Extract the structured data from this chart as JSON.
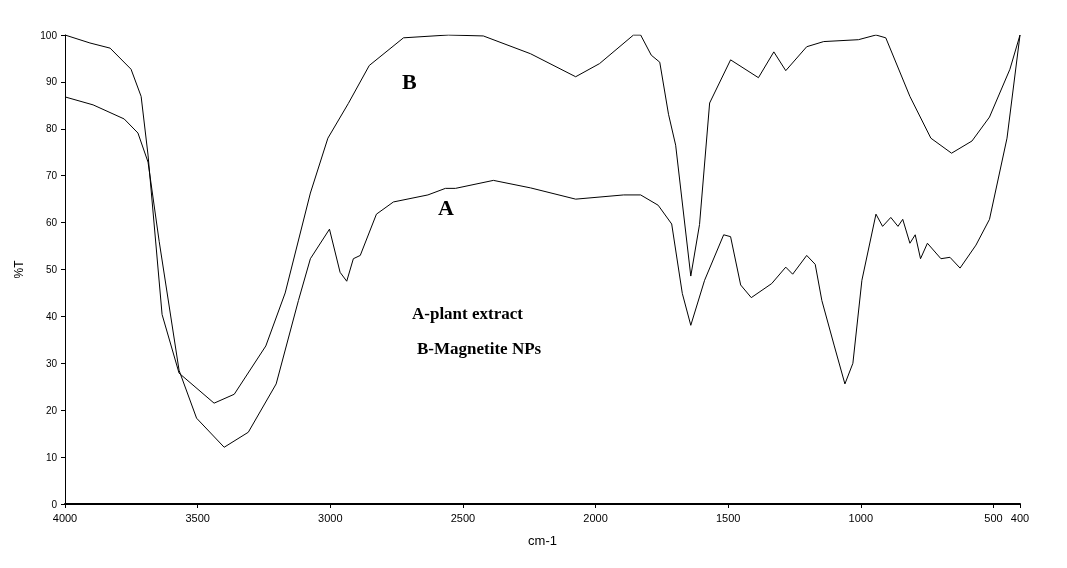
{
  "chart_data": {
    "type": "line",
    "xlabel": "cm-1",
    "ylabel": "%T",
    "xlim": [
      4000,
      400
    ],
    "ylim": [
      0,
      100
    ],
    "xticks": [
      4000,
      3500,
      3000,
      2500,
      2000,
      1500,
      1000,
      500,
      400
    ],
    "yticks": [
      0,
      10,
      20,
      30,
      40,
      50,
      60,
      70,
      80,
      90,
      100
    ],
    "grid": false,
    "marker": "none",
    "line_style": "solid",
    "series": [
      {
        "color": "#000000",
        "x": [
          4000,
          3894,
          3777,
          3725,
          3687,
          3645,
          3570,
          3504,
          3400,
          3309,
          3204,
          3120,
          3075,
          3003,
          2963,
          2938,
          2913,
          2887,
          2826,
          2762,
          2632,
          2566,
          2528,
          2385,
          2245,
          2075,
          1894,
          1830,
          1764,
          1713,
          1673,
          1641,
          1589,
          1517,
          1491,
          1453,
          1413,
          1336,
          1283,
          1257,
          1204,
          1172,
          1147,
          1100,
          1060,
          1030,
          996,
          943,
          918,
          887,
          860,
          842,
          815,
          795,
          775,
          749,
          698,
          664,
          626,
          566,
          515,
          449,
          400
        ],
        "values": [
          86.8,
          85.1,
          82.1,
          79.1,
          72.9,
          56,
          28.5,
          18.3,
          12.1,
          15.3,
          25.6,
          43.4,
          52.3,
          58.6,
          49.4,
          47.5,
          52.3,
          53,
          61.8,
          64.4,
          65.9,
          67.3,
          67.3,
          69,
          67.4,
          65,
          65.9,
          65.9,
          63.7,
          59.7,
          44.9,
          38.1,
          47.7,
          57.4,
          57,
          46.7,
          44,
          47,
          50.5,
          49,
          53,
          51.1,
          43.4,
          33.7,
          25.6,
          30,
          47.7,
          61.8,
          59.2,
          61.1,
          59.2,
          60.7,
          55.6,
          57.4,
          52.3,
          55.6,
          52.3,
          52.6,
          50.3,
          55.2,
          60.7,
          78,
          100
        ]
      },
      {
        "color": "#000000",
        "x": [
          4000,
          3906,
          3830,
          3751,
          3713,
          3687,
          3634,
          3570,
          3438,
          3362,
          3243,
          3170,
          3075,
          3009,
          2932,
          2853,
          2724,
          2555,
          2423,
          2245,
          2075,
          1985,
          1857,
          1830,
          1790,
          1758,
          1725,
          1698,
          1641,
          1608,
          1570,
          1491,
          1386,
          1328,
          1283,
          1204,
          1140,
          1009,
          943,
          906,
          815,
          736,
          658,
          581,
          515,
          438,
          400
        ],
        "values": [
          100,
          98.3,
          97.2,
          92.7,
          86.9,
          74.4,
          40.4,
          27.9,
          21.5,
          23.4,
          33.7,
          45,
          66.3,
          78,
          85.4,
          93.5,
          99.4,
          100,
          99.8,
          96,
          91.1,
          93.9,
          100,
          100,
          95.7,
          94.2,
          83.1,
          76.5,
          48.6,
          59.6,
          85.5,
          94.7,
          90.9,
          96.4,
          92.4,
          97.5,
          98.6,
          99,
          100,
          99.4,
          86.9,
          78,
          74.8,
          77.4,
          82.5,
          92.7,
          100
        ]
      }
    ],
    "annotations": [
      "B",
      "A",
      "A-plant extract",
      "B-Magnetite NPs"
    ]
  }
}
